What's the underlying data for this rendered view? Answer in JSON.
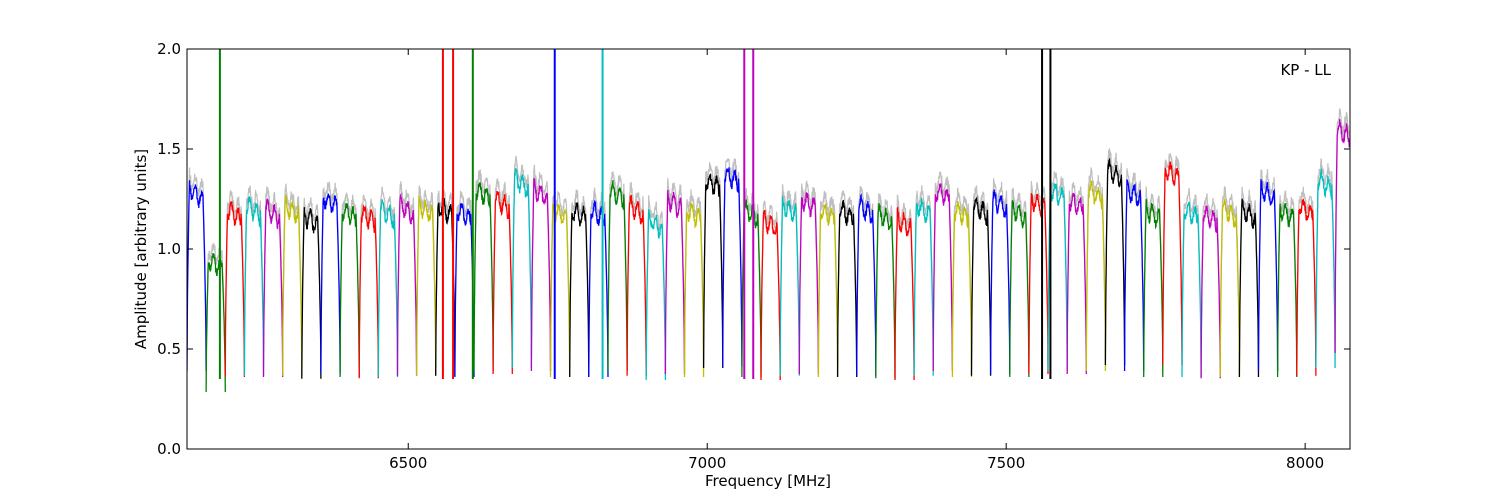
{
  "chart_data": {
    "type": "line",
    "title": "",
    "annotation": "KP - LL",
    "xlabel": "Frequency [MHz]",
    "ylabel": "Amplitude [arbitrary units]",
    "xlim": [
      6130,
      8075
    ],
    "ylim": [
      0.0,
      2.0
    ],
    "x_ticks": [
      6500,
      7000,
      7500,
      8000
    ],
    "x_tick_labels": [
      "6500",
      "7000",
      "7500",
      "8000"
    ],
    "y_ticks": [
      0.0,
      0.5,
      1.0,
      1.5,
      2.0
    ],
    "y_tick_labels": [
      "0.0",
      "0.5",
      "1.0",
      "1.5",
      "2.0"
    ],
    "grid": false,
    "channel_start_mhz": 6130,
    "channel_width_mhz": 32,
    "channel_count": 61,
    "series_colors": [
      "#0000ff",
      "#008000",
      "#ff0000",
      "#00bfbf",
      "#bf00bf",
      "#bfbf00",
      "#000000"
    ],
    "background_color": "#bfbfbf",
    "channel_levels": [
      1.3,
      0.95,
      1.2,
      1.22,
      1.2,
      1.22,
      1.17,
      1.26,
      1.2,
      1.18,
      1.2,
      1.22,
      1.22,
      1.22,
      1.2,
      1.3,
      1.25,
      1.35,
      1.3,
      1.2,
      1.2,
      1.2,
      1.3,
      1.22,
      1.15,
      1.25,
      1.2,
      1.35,
      1.38,
      1.2,
      1.15,
      1.22,
      1.25,
      1.2,
      1.2,
      1.22,
      1.18,
      1.15,
      1.22,
      1.3,
      1.2,
      1.22,
      1.25,
      1.2,
      1.25,
      1.3,
      1.25,
      1.3,
      1.4,
      1.3,
      1.2,
      1.4,
      1.2,
      1.18,
      1.2,
      1.2,
      1.3,
      1.2,
      1.22,
      1.35,
      1.6
    ],
    "spikes": [
      {
        "x": 6185,
        "y": 2.0,
        "color": "#008000"
      },
      {
        "x": 6558,
        "y": 2.0,
        "color": "#ff0000"
      },
      {
        "x": 6575,
        "y": 2.0,
        "color": "#ff0000"
      },
      {
        "x": 6608,
        "y": 2.0,
        "color": "#008000"
      },
      {
        "x": 6745,
        "y": 2.0,
        "color": "#0000ff"
      },
      {
        "x": 6825,
        "y": 2.0,
        "color": "#00bfbf"
      },
      {
        "x": 7062,
        "y": 2.0,
        "color": "#bf00bf"
      },
      {
        "x": 7077,
        "y": 2.0,
        "color": "#bf00bf"
      },
      {
        "x": 7560,
        "y": 2.0,
        "color": "#000000"
      },
      {
        "x": 7574,
        "y": 2.0,
        "color": "#000000"
      }
    ]
  }
}
